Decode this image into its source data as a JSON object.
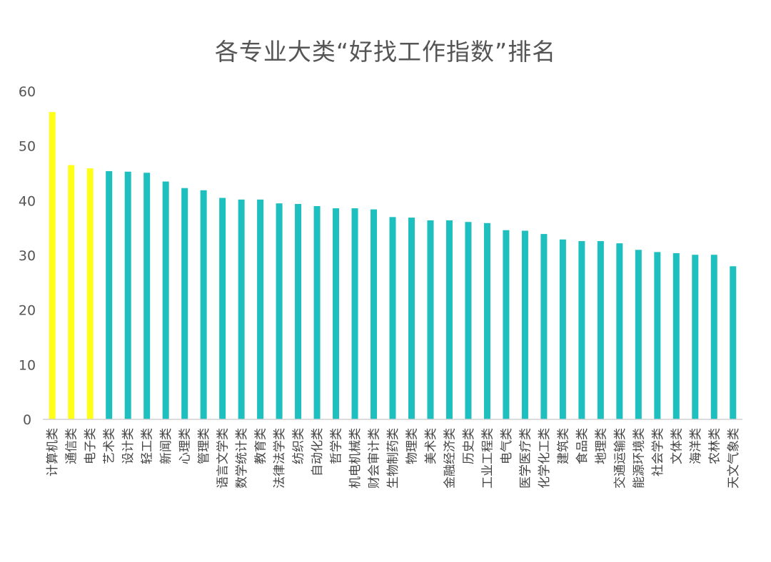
{
  "chart_data": {
    "type": "bar",
    "title": "各专业大类“好找工作指数”排名",
    "xlabel": "",
    "ylabel": "",
    "ylim": [
      0,
      60
    ],
    "yticks": [
      0,
      10,
      20,
      30,
      40,
      50,
      60
    ],
    "grid": false,
    "colors": {
      "highlight": "#ffff1a",
      "default": "#1dbfbf",
      "axis": "#d0d0d0",
      "text": "#555555"
    },
    "highlight_count": 3,
    "categories": [
      "计算机类",
      "通信类",
      "电子类",
      "艺术类",
      "设计类",
      "轻工类",
      "新闻类",
      "心理类",
      "管理类",
      "语言文学类",
      "数学统计类",
      "教育类",
      "法律法学类",
      "纺织类",
      "自动化类",
      "哲学类",
      "机电机械类",
      "财会审计类",
      "生物制药类",
      "物理类",
      "美术类",
      "金融经济类",
      "历史类",
      "工业工程类",
      "电气类",
      "医学医疗类",
      "化学化工类",
      "建筑类",
      "食品类",
      "地理类",
      "交通运输类",
      "能源环境类",
      "社会学类",
      "文体类",
      "海洋类",
      "农林类",
      "天文气象类"
    ],
    "values": [
      56.2,
      46.5,
      45.9,
      45.4,
      45.3,
      45.1,
      43.5,
      42.3,
      41.9,
      40.5,
      40.2,
      40.2,
      39.5,
      39.4,
      39.0,
      38.6,
      38.6,
      38.4,
      37.0,
      36.9,
      36.4,
      36.4,
      36.1,
      35.9,
      34.6,
      34.5,
      33.9,
      32.9,
      32.6,
      32.6,
      32.2,
      31.0,
      30.6,
      30.4,
      30.1,
      30.1,
      28.0
    ]
  }
}
